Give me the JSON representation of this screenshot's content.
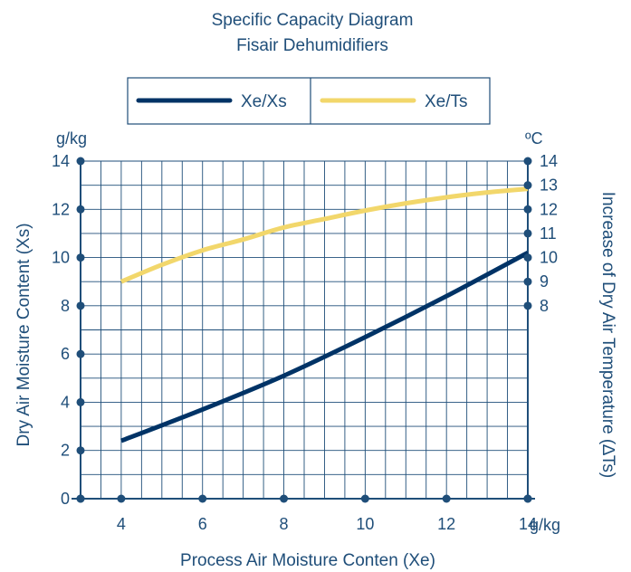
{
  "chart_data": {
    "type": "line",
    "title": "Specific Capacity Diagram",
    "subtitle": "Fisair Dehumidifiers",
    "xlabel": "Process Air Moisture Conten (Xe)",
    "x_unit": "g/kg",
    "ylabel_left": "Dry Air Moisture Content (Xs)",
    "y_unit_left": "g/kg",
    "ylabel_right": "Increase of Dry Air Temperature (∆Ts)",
    "y_unit_right": "ºC",
    "xlim": [
      3,
      14
    ],
    "ylim_left": [
      0,
      14
    ],
    "ylim_right": [
      8,
      14
    ],
    "x_ticks": [
      "4",
      "6",
      "8",
      "10",
      "12",
      "14"
    ],
    "y_ticks_left": [
      "0",
      "2",
      "4",
      "6",
      "8",
      "10",
      "12",
      "14"
    ],
    "y_ticks_right": [
      "8",
      "9",
      "10",
      "11",
      "12",
      "13",
      "14"
    ],
    "grid": true,
    "legend_position": "top-center",
    "colors": {
      "axis": "#1f4e79",
      "grid": "#1f4e79",
      "xe_xs": "#003366",
      "xe_ts": "#f2d76b"
    },
    "series": [
      {
        "name": "Xe/Xs",
        "axis": "left",
        "x": [
          4,
          6,
          8,
          10,
          12,
          14
        ],
        "y": [
          2.4,
          3.7,
          5.1,
          6.7,
          8.4,
          10.2
        ]
      },
      {
        "name": "Xe/Ts",
        "axis": "right",
        "x": [
          4,
          5,
          6,
          7,
          8,
          9,
          10,
          11,
          12,
          13,
          14
        ],
        "y": [
          9.0,
          9.7,
          10.3,
          10.75,
          11.25,
          11.6,
          11.95,
          12.25,
          12.5,
          12.7,
          12.85
        ]
      }
    ]
  }
}
